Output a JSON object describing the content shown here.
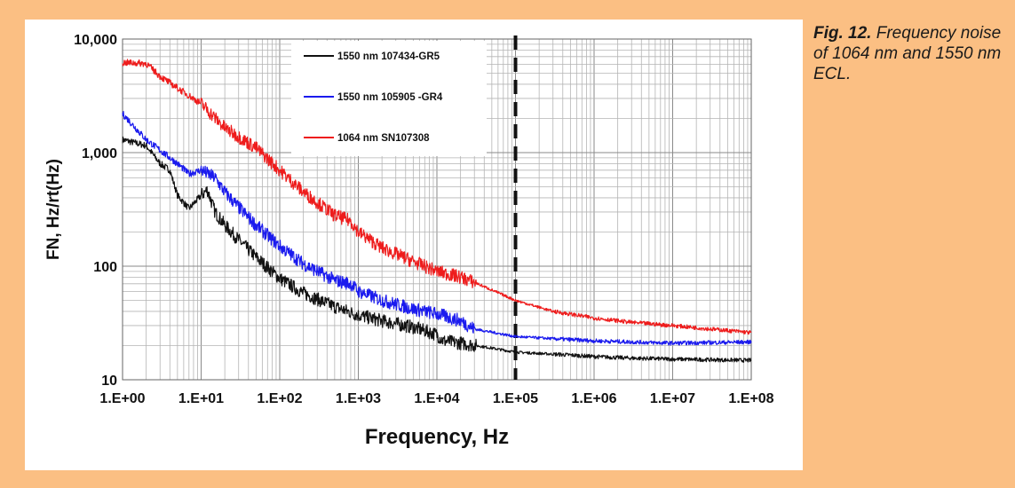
{
  "caption": {
    "figure_label": "Fig. 12.",
    "text": "Frequency noise of 1064 nm and 1550 nm ECL."
  },
  "chart_data": {
    "type": "line",
    "xlabel": "Frequency, Hz",
    "ylabel": "FN, Hz/rt(Hz)",
    "x_scale": "log",
    "y_scale": "log",
    "xlim": [
      1,
      100000000
    ],
    "ylim": [
      10,
      10000
    ],
    "x_ticks": [
      {
        "value": 1,
        "label": "1.E+00"
      },
      {
        "value": 10,
        "label": "1.E+01"
      },
      {
        "value": 100,
        "label": "1.E+02"
      },
      {
        "value": 1000,
        "label": "1.E+03"
      },
      {
        "value": 10000,
        "label": "1.E+04"
      },
      {
        "value": 100000,
        "label": "1.E+05"
      },
      {
        "value": 1000000,
        "label": "1.E+06"
      },
      {
        "value": 10000000,
        "label": "1.E+07"
      },
      {
        "value": 100000000,
        "label": "1.E+08"
      }
    ],
    "y_ticks": [
      {
        "value": 10,
        "label": "10"
      },
      {
        "value": 100,
        "label": "100"
      },
      {
        "value": 1000,
        "label": "1,000"
      },
      {
        "value": 10000,
        "label": "10,000"
      }
    ],
    "grid": true,
    "legend_position": "top-center",
    "annotations": [
      {
        "type": "vertical-dashed-line",
        "x": 100000,
        "color": "#111111"
      }
    ],
    "series": [
      {
        "name": "1550 nm 107434-GR5",
        "color": "#111111",
        "x": [
          1,
          2,
          3,
          4,
          5,
          7,
          10,
          12,
          15,
          20,
          30,
          50,
          100,
          200,
          500,
          1000,
          2000,
          5000,
          10000,
          12000,
          20000,
          50000,
          100000,
          300000,
          500000,
          1000000,
          3000000,
          10000000,
          30000000,
          100000000
        ],
        "y": [
          1300,
          1150,
          800,
          700,
          420,
          320,
          420,
          470,
          300,
          230,
          170,
          120,
          78,
          58,
          44,
          37,
          33,
          29,
          25,
          22,
          21,
          19,
          17.5,
          16.8,
          16.5,
          16,
          15.5,
          15.2,
          15,
          14.8
        ]
      },
      {
        "name": "1550 nm 105905 -GR4",
        "color": "#1a1aee",
        "x": [
          1,
          2,
          3,
          4,
          5,
          7,
          10,
          15,
          20,
          30,
          50,
          100,
          200,
          500,
          800,
          1000,
          2000,
          5000,
          10000,
          20000,
          30000,
          100000,
          300000,
          1000000,
          3000000,
          10000000,
          100000000
        ],
        "y": [
          2200,
          1300,
          1050,
          900,
          800,
          650,
          700,
          600,
          450,
          330,
          230,
          150,
          105,
          75,
          70,
          60,
          50,
          42,
          38,
          33,
          28,
          24,
          23,
          22,
          21.5,
          21,
          21.5
        ]
      },
      {
        "name": "1064 nm SN107308",
        "color": "#ee1c1c",
        "x": [
          1,
          2,
          3,
          5,
          10,
          20,
          50,
          100,
          200,
          500,
          800,
          1000,
          2000,
          5000,
          10000,
          20000,
          30000,
          100000,
          300000,
          1000000,
          3000000,
          10000000,
          30000000,
          100000000
        ],
        "y": [
          6200,
          6100,
          4700,
          3700,
          2700,
          1650,
          1100,
          700,
          450,
          280,
          250,
          200,
          145,
          110,
          90,
          80,
          72,
          50,
          40,
          35,
          32,
          30,
          28,
          26
        ]
      }
    ]
  }
}
